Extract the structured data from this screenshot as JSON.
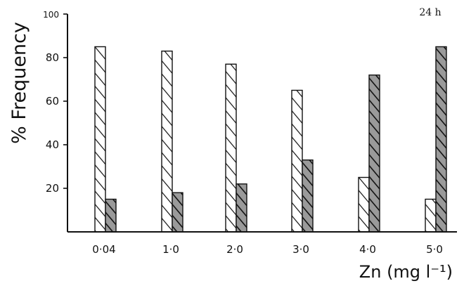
{
  "chart_data": {
    "type": "bar",
    "annotation": "24 h",
    "xlabel": "Zn (mg l⁻¹)",
    "ylabel": "% Frequency",
    "ylim": [
      0,
      100
    ],
    "yticks": [
      20,
      40,
      60,
      80,
      100
    ],
    "ytick_labels": [
      "20",
      "40",
      "60",
      "80",
      "100"
    ],
    "categories": [
      "0·04",
      "1·0",
      "2·0",
      "3·0",
      "4·0",
      "5·0"
    ],
    "grid": false,
    "series": [
      {
        "pattern": "light-hatch",
        "values": [
          85,
          83,
          77,
          65,
          25,
          15
        ]
      },
      {
        "pattern": "dark-hatch",
        "values": [
          15,
          18,
          22,
          33,
          72,
          85
        ]
      }
    ],
    "colors": {
      "ink": "#111111",
      "dark_fill": "#8a8a8a",
      "light_fill": "#ffffff"
    }
  }
}
